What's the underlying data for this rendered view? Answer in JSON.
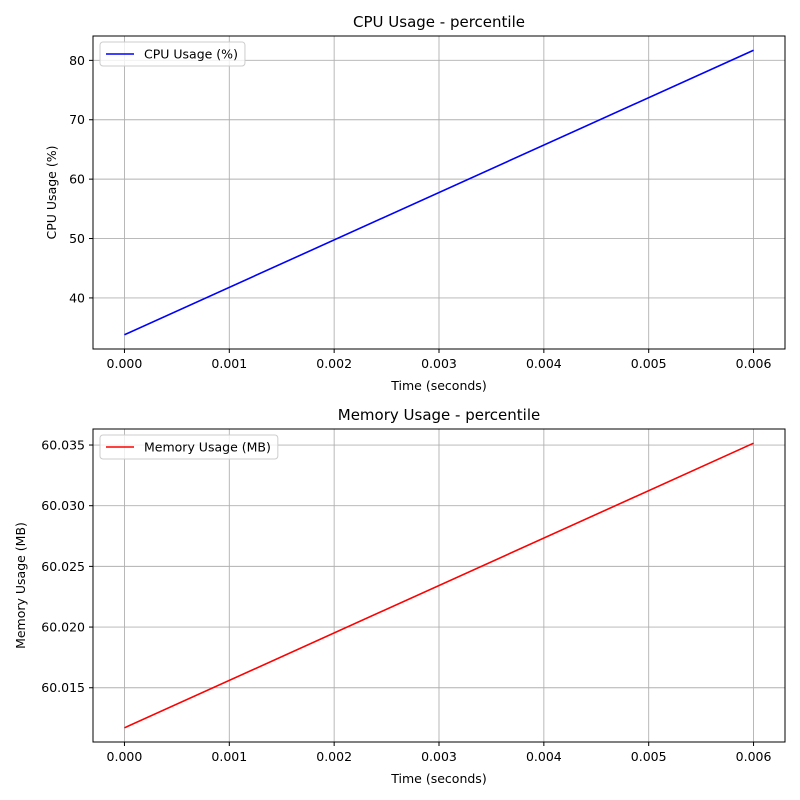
{
  "chart_data": [
    {
      "type": "line",
      "title": "CPU Usage - percentile",
      "xlabel": "Time (seconds)",
      "ylabel": "CPU Usage (%)",
      "x": [
        0.0,
        0.006
      ],
      "series": [
        {
          "name": "CPU Usage (%)",
          "color": "#0000ff",
          "values": [
            33.8,
            81.7
          ]
        }
      ],
      "xlim": [
        -0.0003,
        0.0063
      ],
      "ylim": [
        31.4,
        84.1
      ],
      "xticks": [
        0.0,
        0.001,
        0.002,
        0.003,
        0.004,
        0.005,
        0.006
      ],
      "xtick_labels": [
        "0.000",
        "0.001",
        "0.002",
        "0.003",
        "0.004",
        "0.005",
        "0.006"
      ],
      "yticks": [
        40,
        50,
        60,
        70,
        80
      ],
      "ytick_labels": [
        "40",
        "50",
        "60",
        "70",
        "80"
      ],
      "grid": true,
      "legend": "top-left"
    },
    {
      "type": "line",
      "title": "Memory Usage - percentile",
      "xlabel": "Time (seconds)",
      "ylabel": "Memory Usage (MB)",
      "x": [
        0.0,
        0.006
      ],
      "series": [
        {
          "name": "Memory Usage (MB)",
          "color": "#ff0000",
          "values": [
            60.0117,
            60.03515
          ]
        }
      ],
      "xlim": [
        -0.0003,
        0.0063
      ],
      "ylim": [
        60.01053,
        60.03632
      ],
      "xticks": [
        0.0,
        0.001,
        0.002,
        0.003,
        0.004,
        0.005,
        0.006
      ],
      "xtick_labels": [
        "0.000",
        "0.001",
        "0.002",
        "0.003",
        "0.004",
        "0.005",
        "0.006"
      ],
      "yticks": [
        60.015,
        60.02,
        60.025,
        60.03,
        60.035
      ],
      "ytick_labels": [
        "60.015",
        "60.020",
        "60.025",
        "60.030",
        "60.035"
      ],
      "grid": true,
      "legend": "top-left"
    }
  ]
}
